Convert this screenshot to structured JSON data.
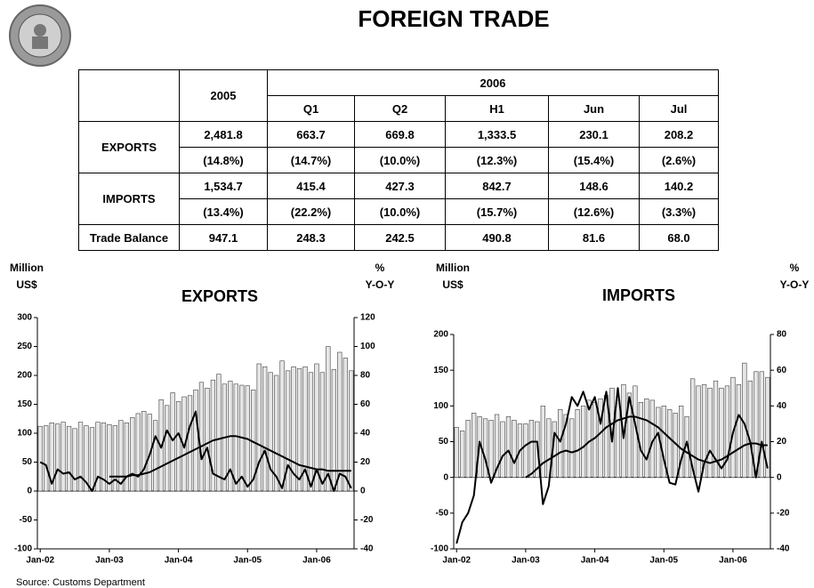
{
  "title": "FOREIGN TRADE",
  "source": "Source: Customs Department",
  "table": {
    "headers": {
      "y2005": "2005",
      "y2006": "2006",
      "periods": [
        "Q1",
        "Q2",
        "H1",
        "Jun",
        "Jul"
      ]
    },
    "rows": [
      [
        "EXPORTS",
        "2,481.8",
        "663.7",
        "669.8",
        "1,333.5",
        "230.1",
        "208.2"
      ],
      [
        "(14.8%)",
        "(14.7%)",
        "(10.0%)",
        "(12.3%)",
        "(15.4%)",
        "(2.6%)"
      ],
      [
        "IMPORTS",
        "1,534.7",
        "415.4",
        "427.3",
        "842.7",
        "148.6",
        "140.2"
      ],
      [
        "(13.4%)",
        "(22.2%)",
        "(10.0%)",
        "(15.7%)",
        "(12.6%)",
        "(3.3%)"
      ],
      [
        "Trade Balance",
        "947.1",
        "248.3",
        "242.5",
        "490.8",
        "81.6",
        "68.0"
      ]
    ]
  },
  "chart_data": [
    {
      "type": "bar",
      "title": "EXPORTS",
      "y_label_lines": [
        "Million",
        "US$"
      ],
      "y2_label_lines": [
        "%",
        "Y-O-Y"
      ],
      "categories": [
        "Jan-02",
        null,
        null,
        null,
        null,
        null,
        null,
        null,
        null,
        null,
        null,
        null,
        "Jan-03",
        null,
        null,
        null,
        null,
        null,
        null,
        null,
        null,
        null,
        null,
        null,
        "Jan-04",
        null,
        null,
        null,
        null,
        null,
        null,
        null,
        null,
        null,
        null,
        null,
        "Jan-05",
        null,
        null,
        null,
        null,
        null,
        null,
        null,
        null,
        null,
        null,
        null,
        "Jan-06",
        null,
        null,
        null,
        null,
        null,
        null
      ],
      "ylim": [
        -100,
        300
      ],
      "yticks": [
        -100,
        -50,
        0,
        50,
        100,
        150,
        200,
        250,
        300
      ],
      "y2lim": [
        -40,
        120
      ],
      "y2ticks": [
        -40,
        -20,
        0,
        20,
        40,
        60,
        80,
        100,
        120
      ],
      "series": [
        {
          "type": "bar",
          "color": "#e6e6e6",
          "values": [
            112,
            113,
            118,
            116,
            119,
            112,
            108,
            119,
            113,
            110,
            119,
            118,
            115,
            113,
            122,
            118,
            127,
            134,
            138,
            133,
            122,
            158,
            148,
            170,
            155,
            163,
            165,
            175,
            188,
            178,
            192,
            202,
            185,
            190,
            185,
            183,
            182,
            175,
            220,
            215,
            205,
            200,
            225,
            208,
            215,
            212,
            215,
            205,
            220,
            205,
            250,
            210,
            240,
            230,
            208
          ]
        },
        {
          "type": "line",
          "axis": "y2",
          "color": "#000000",
          "values": [
            20,
            18,
            5,
            15,
            12,
            13,
            8,
            10,
            6,
            0,
            10,
            8,
            5,
            8,
            5,
            10,
            12,
            10,
            15,
            25,
            38,
            30,
            42,
            35,
            40,
            30,
            45,
            55,
            22,
            30,
            12,
            10,
            8,
            15,
            5,
            10,
            3,
            8,
            20,
            28,
            15,
            10,
            2,
            18,
            12,
            8,
            15,
            3,
            15,
            5,
            12,
            0,
            12,
            10,
            2
          ]
        },
        {
          "type": "line",
          "axis": "y2",
          "color": "#000000",
          "values": [
            null,
            null,
            null,
            null,
            null,
            null,
            null,
            null,
            null,
            null,
            null,
            null,
            10,
            10,
            10,
            10,
            11,
            11,
            12,
            13,
            15,
            17,
            19,
            21,
            23,
            25,
            27,
            29,
            31,
            33,
            35,
            36,
            37,
            38,
            38,
            37,
            36,
            34,
            32,
            30,
            28,
            26,
            24,
            22,
            20,
            18,
            17,
            16,
            15,
            15,
            14,
            14,
            14,
            14,
            14
          ]
        }
      ]
    },
    {
      "type": "bar",
      "title": "IMPORTS",
      "y_label_lines": [
        "Million",
        "US$"
      ],
      "y2_label_lines": [
        "%",
        "Y-O-Y"
      ],
      "categories": [
        "Jan-02",
        null,
        null,
        null,
        null,
        null,
        null,
        null,
        null,
        null,
        null,
        null,
        "Jan-03",
        null,
        null,
        null,
        null,
        null,
        null,
        null,
        null,
        null,
        null,
        null,
        "Jan-04",
        null,
        null,
        null,
        null,
        null,
        null,
        null,
        null,
        null,
        null,
        null,
        "Jan-05",
        null,
        null,
        null,
        null,
        null,
        null,
        null,
        null,
        null,
        null,
        null,
        "Jan-06",
        null,
        null,
        null,
        null,
        null,
        null
      ],
      "ylim": [
        -100,
        200
      ],
      "yticks": [
        -100,
        -50,
        0,
        50,
        100,
        150,
        200
      ],
      "y2lim": [
        -40,
        80
      ],
      "y2ticks": [
        -40,
        -20,
        0,
        20,
        40,
        60,
        80
      ],
      "series": [
        {
          "type": "bar",
          "color": "#e6e6e6",
          "values": [
            70,
            65,
            80,
            90,
            85,
            82,
            80,
            88,
            78,
            85,
            80,
            75,
            75,
            80,
            78,
            100,
            82,
            78,
            95,
            88,
            82,
            95,
            100,
            108,
            105,
            110,
            115,
            125,
            108,
            130,
            118,
            128,
            105,
            110,
            108,
            98,
            100,
            95,
            90,
            100,
            85,
            138,
            128,
            130,
            125,
            135,
            125,
            128,
            140,
            130,
            160,
            135,
            148,
            148,
            140
          ]
        },
        {
          "type": "line",
          "axis": "y2",
          "color": "#000000",
          "values": [
            -37,
            -25,
            -20,
            -10,
            20,
            10,
            -3,
            5,
            12,
            15,
            8,
            15,
            18,
            20,
            20,
            -15,
            -5,
            25,
            20,
            30,
            45,
            40,
            48,
            38,
            45,
            30,
            48,
            20,
            50,
            22,
            45,
            30,
            15,
            10,
            20,
            25,
            10,
            -3,
            -4,
            10,
            20,
            5,
            -8,
            8,
            15,
            10,
            5,
            10,
            25,
            35,
            30,
            20,
            0,
            20,
            5
          ]
        },
        {
          "type": "line",
          "axis": "y2",
          "color": "#000000",
          "values": [
            null,
            null,
            null,
            null,
            null,
            null,
            null,
            null,
            null,
            null,
            null,
            null,
            0,
            2,
            5,
            8,
            10,
            12,
            14,
            15,
            14,
            15,
            17,
            20,
            22,
            25,
            28,
            30,
            32,
            33,
            34,
            34,
            33,
            32,
            30,
            28,
            25,
            22,
            19,
            16,
            14,
            12,
            10,
            9,
            8,
            9,
            10,
            12,
            14,
            16,
            18,
            19,
            19,
            18,
            18
          ]
        }
      ]
    }
  ]
}
